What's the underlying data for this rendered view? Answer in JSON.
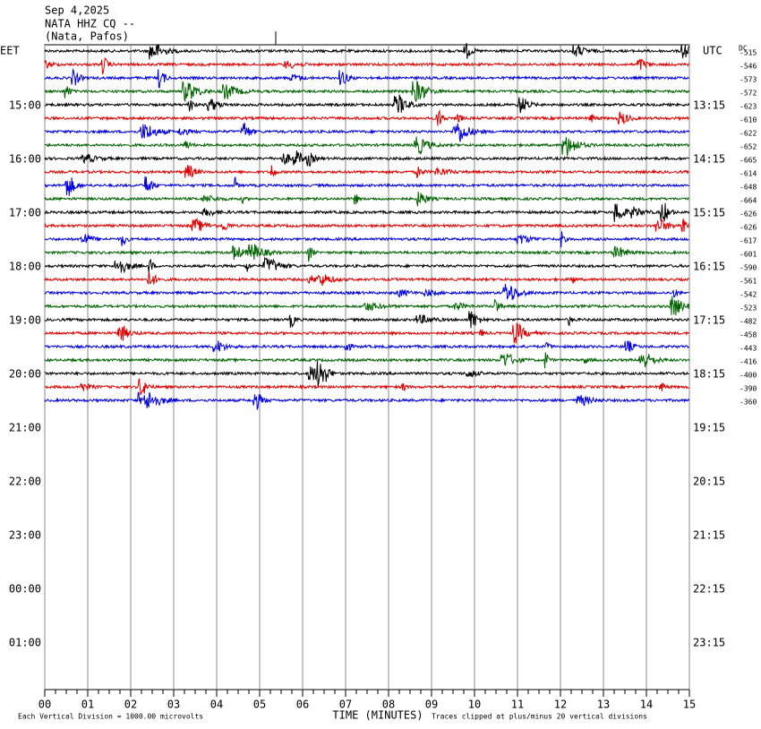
{
  "header": {
    "date": "Sep 4,2025",
    "station": "NATA HHZ CQ --",
    "location": "(Nata, Pafos)"
  },
  "left_zone": "EET",
  "right_zone": "UTC",
  "dc_label": "DC",
  "left_labels": [
    "15:00",
    "16:00",
    "17:00",
    "18:00",
    "19:00",
    "20:00",
    "21:00",
    "22:00",
    "23:00",
    "00:00",
    "01:00"
  ],
  "right_labels": [
    "13:15",
    "14:15",
    "15:15",
    "16:15",
    "17:15",
    "18:15",
    "19:15",
    "20:15",
    "21:15",
    "22:15",
    "23:15"
  ],
  "trace_colors": [
    "#000000",
    "#e00000",
    "#0000e0",
    "#006400"
  ],
  "dc_offsets": [
    "-515",
    "-546",
    "-573",
    "-572",
    "-623",
    "-610",
    "-622",
    "-652",
    "-665",
    "-614",
    "-648",
    "-664",
    "-626",
    "-626",
    "-617",
    "-601",
    "-590",
    "-561",
    "-542",
    "-523",
    "-482",
    "-458",
    "-443",
    "-416",
    "-400",
    "-390",
    "-360"
  ],
  "x_axis": {
    "label": "TIME (MINUTES)",
    "ticks": [
      "00",
      "01",
      "02",
      "03",
      "04",
      "05",
      "06",
      "07",
      "08",
      "09",
      "10",
      "11",
      "12",
      "13",
      "14",
      "15"
    ]
  },
  "footer": {
    "left": "Each Vertical Division = 1000.00 microvolts",
    "right": "Traces clipped at plus/minus 20 vertical divisions"
  }
}
